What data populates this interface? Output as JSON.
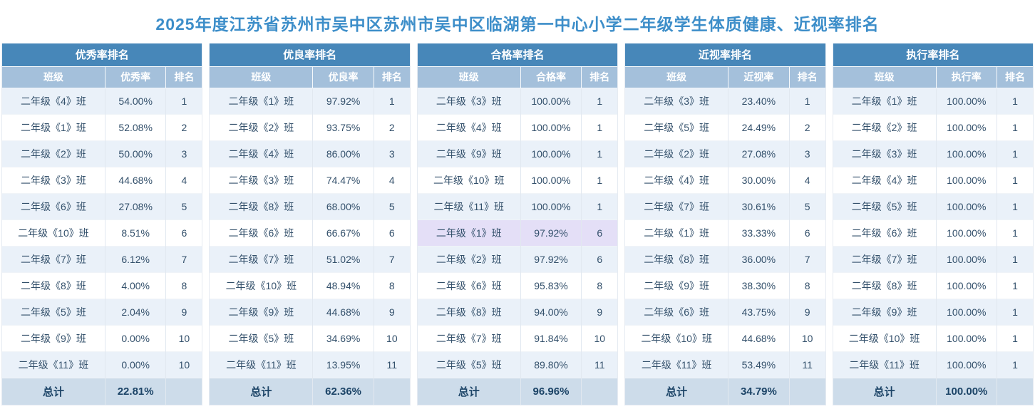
{
  "page_title": "2025年度江苏省苏州市吴中区苏州市吴中区临湖第一中心小学二年级学生体质健康、近视率排名",
  "shared_columns": {
    "class": "班级",
    "rank": "排名"
  },
  "total_label": "总计",
  "colors": {
    "title": "#3d8ec9",
    "header_bg": "#4787b9",
    "subheader_bg": "#a4c0db",
    "header_text": "#ffffff",
    "row_alt_bg": "#eaf1f9",
    "row_bg": "#ffffff",
    "row_highlight_bg": "#e4dff7",
    "total_row_bg": "#cddcea",
    "cell_text": "#33506b",
    "total_text": "#1c4467"
  },
  "tables": [
    {
      "title": "优秀率排名",
      "rate_column": "优秀率",
      "rows": [
        [
          "二年级《4》班",
          "54.00%",
          "1"
        ],
        [
          "二年级《1》班",
          "52.08%",
          "2"
        ],
        [
          "二年级《2》班",
          "50.00%",
          "3"
        ],
        [
          "二年级《3》班",
          "44.68%",
          "4"
        ],
        [
          "二年级《6》班",
          "27.08%",
          "5"
        ],
        [
          "二年级《10》班",
          "8.51%",
          "6"
        ],
        [
          "二年级《7》班",
          "6.12%",
          "7"
        ],
        [
          "二年级《8》班",
          "4.00%",
          "8"
        ],
        [
          "二年级《5》班",
          "2.04%",
          "9"
        ],
        [
          "二年级《9》班",
          "0.00%",
          "10"
        ],
        [
          "二年级《11》班",
          "0.00%",
          "10"
        ]
      ],
      "total_rate": "22.81%"
    },
    {
      "title": "优良率排名",
      "rate_column": "优良率",
      "rows": [
        [
          "二年级《1》班",
          "97.92%",
          "1"
        ],
        [
          "二年级《2》班",
          "93.75%",
          "2"
        ],
        [
          "二年级《4》班",
          "86.00%",
          "3"
        ],
        [
          "二年级《3》班",
          "74.47%",
          "4"
        ],
        [
          "二年级《8》班",
          "68.00%",
          "5"
        ],
        [
          "二年级《6》班",
          "66.67%",
          "6"
        ],
        [
          "二年级《7》班",
          "51.02%",
          "7"
        ],
        [
          "二年级《10》班",
          "48.94%",
          "8"
        ],
        [
          "二年级《9》班",
          "44.68%",
          "9"
        ],
        [
          "二年级《5》班",
          "34.69%",
          "10"
        ],
        [
          "二年级《11》班",
          "13.95%",
          "11"
        ]
      ],
      "total_rate": "62.36%"
    },
    {
      "title": "合格率排名",
      "rate_column": "合格率",
      "highlight_row": 5,
      "rows": [
        [
          "二年级《3》班",
          "100.00%",
          "1"
        ],
        [
          "二年级《4》班",
          "100.00%",
          "1"
        ],
        [
          "二年级《9》班",
          "100.00%",
          "1"
        ],
        [
          "二年级《10》班",
          "100.00%",
          "1"
        ],
        [
          "二年级《11》班",
          "100.00%",
          "1"
        ],
        [
          "二年级《1》班",
          "97.92%",
          "6"
        ],
        [
          "二年级《2》班",
          "97.92%",
          "6"
        ],
        [
          "二年级《6》班",
          "95.83%",
          "8"
        ],
        [
          "二年级《8》班",
          "94.00%",
          "9"
        ],
        [
          "二年级《7》班",
          "91.84%",
          "10"
        ],
        [
          "二年级《5》班",
          "89.80%",
          "11"
        ]
      ],
      "total_rate": "96.96%"
    },
    {
      "title": "近视率排名",
      "rate_column": "近视率",
      "rows": [
        [
          "二年级《3》班",
          "23.40%",
          "1"
        ],
        [
          "二年级《5》班",
          "24.49%",
          "2"
        ],
        [
          "二年级《2》班",
          "27.08%",
          "3"
        ],
        [
          "二年级《4》班",
          "30.00%",
          "4"
        ],
        [
          "二年级《7》班",
          "30.61%",
          "5"
        ],
        [
          "二年级《1》班",
          "33.33%",
          "6"
        ],
        [
          "二年级《8》班",
          "36.00%",
          "7"
        ],
        [
          "二年级《9》班",
          "38.30%",
          "8"
        ],
        [
          "二年级《6》班",
          "43.75%",
          "9"
        ],
        [
          "二年级《10》班",
          "44.68%",
          "10"
        ],
        [
          "二年级《11》班",
          "53.49%",
          "11"
        ]
      ],
      "total_rate": "34.79%"
    },
    {
      "title": "执行率排名",
      "rate_column": "执行率",
      "rows": [
        [
          "二年级《1》班",
          "100.00%",
          "1"
        ],
        [
          "二年级《2》班",
          "100.00%",
          "1"
        ],
        [
          "二年级《3》班",
          "100.00%",
          "1"
        ],
        [
          "二年级《4》班",
          "100.00%",
          "1"
        ],
        [
          "二年级《5》班",
          "100.00%",
          "1"
        ],
        [
          "二年级《6》班",
          "100.00%",
          "1"
        ],
        [
          "二年级《7》班",
          "100.00%",
          "1"
        ],
        [
          "二年级《8》班",
          "100.00%",
          "1"
        ],
        [
          "二年级《9》班",
          "100.00%",
          "1"
        ],
        [
          "二年级《10》班",
          "100.00%",
          "1"
        ],
        [
          "二年级《11》班",
          "100.00%",
          "1"
        ]
      ],
      "total_rate": "100.00%"
    }
  ]
}
